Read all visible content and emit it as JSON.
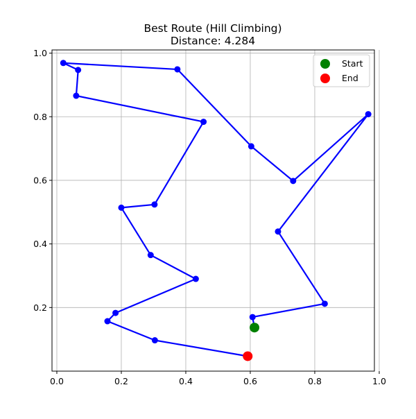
{
  "title_line1": "Best Route (Hill Climbing)",
  "title_line2": "Distance: 4.284",
  "legend": {
    "start_label": "Start",
    "end_label": "End"
  },
  "chart_data": {
    "type": "line",
    "title": "Best Route (Hill Climbing)",
    "subtitle": "Distance: 4.284",
    "xlabel": "",
    "ylabel": "",
    "xlim": [
      -0.015,
      0.985
    ],
    "ylim": [
      0.0,
      1.01
    ],
    "x_ticks": [
      0.0,
      0.2,
      0.4,
      0.6,
      0.8,
      1.0
    ],
    "y_ticks": [
      0.2,
      0.4,
      0.6,
      0.8,
      1.0
    ],
    "x_tick_labels": [
      "0.0",
      "0.2",
      "0.4",
      "0.6",
      "0.8",
      "1.0"
    ],
    "y_tick_labels": [
      "0.2",
      "0.4",
      "0.6",
      "0.8",
      "1.0"
    ],
    "grid": true,
    "legend_position": "top-right",
    "route_color": "#0000ff",
    "start_color": "#008000",
    "end_color": "#ff0000",
    "route": {
      "x": [
        0.613,
        0.607,
        0.831,
        0.686,
        0.966,
        0.733,
        0.603,
        0.374,
        0.02,
        0.066,
        0.06,
        0.455,
        0.303,
        0.2,
        0.291,
        0.431,
        0.182,
        0.157,
        0.304,
        0.592
      ],
      "y": [
        0.137,
        0.17,
        0.212,
        0.439,
        0.808,
        0.598,
        0.707,
        0.949,
        0.969,
        0.947,
        0.866,
        0.784,
        0.524,
        0.514,
        0.365,
        0.29,
        0.183,
        0.157,
        0.097,
        0.047
      ]
    },
    "start": {
      "x": 0.613,
      "y": 0.137
    },
    "end": {
      "x": 0.592,
      "y": 0.047
    }
  }
}
